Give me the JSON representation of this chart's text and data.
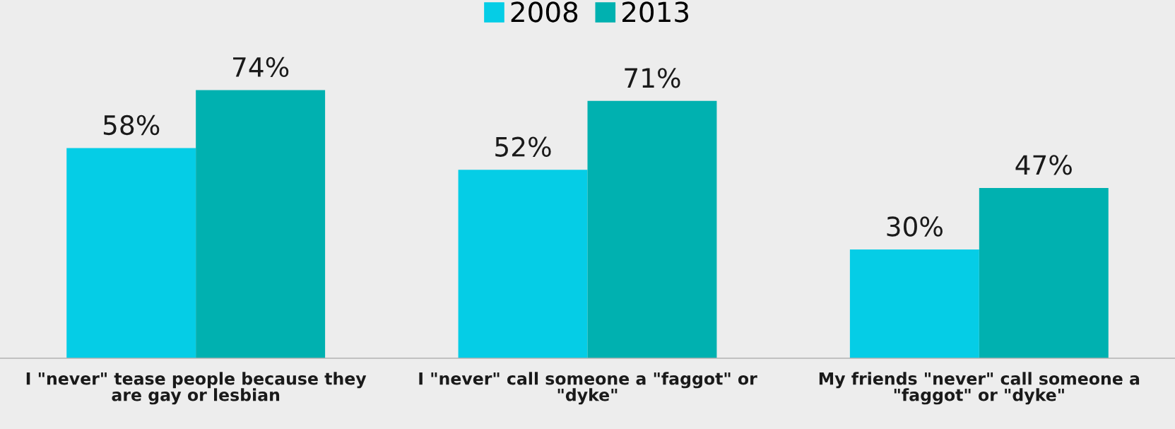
{
  "chart_data": {
    "type": "bar",
    "categories": [
      "I \"never\" tease people because they are gay or lesbian",
      "I \"never\" call someone a \"faggot\" or \"dyke\"",
      "My friends \"never\" call someone a \"faggot\" or \"dyke\""
    ],
    "series": [
      {
        "name": "2008",
        "color": "#05cde6",
        "values": [
          58,
          52,
          30
        ],
        "value_labels": [
          "58%",
          "52%",
          "30%"
        ]
      },
      {
        "name": "2013",
        "color": "#00b1b0",
        "values": [
          74,
          71,
          47
        ],
        "value_labels": [
          "74%",
          "71%",
          "47%"
        ]
      }
    ],
    "legend": "top",
    "grid": false
  }
}
